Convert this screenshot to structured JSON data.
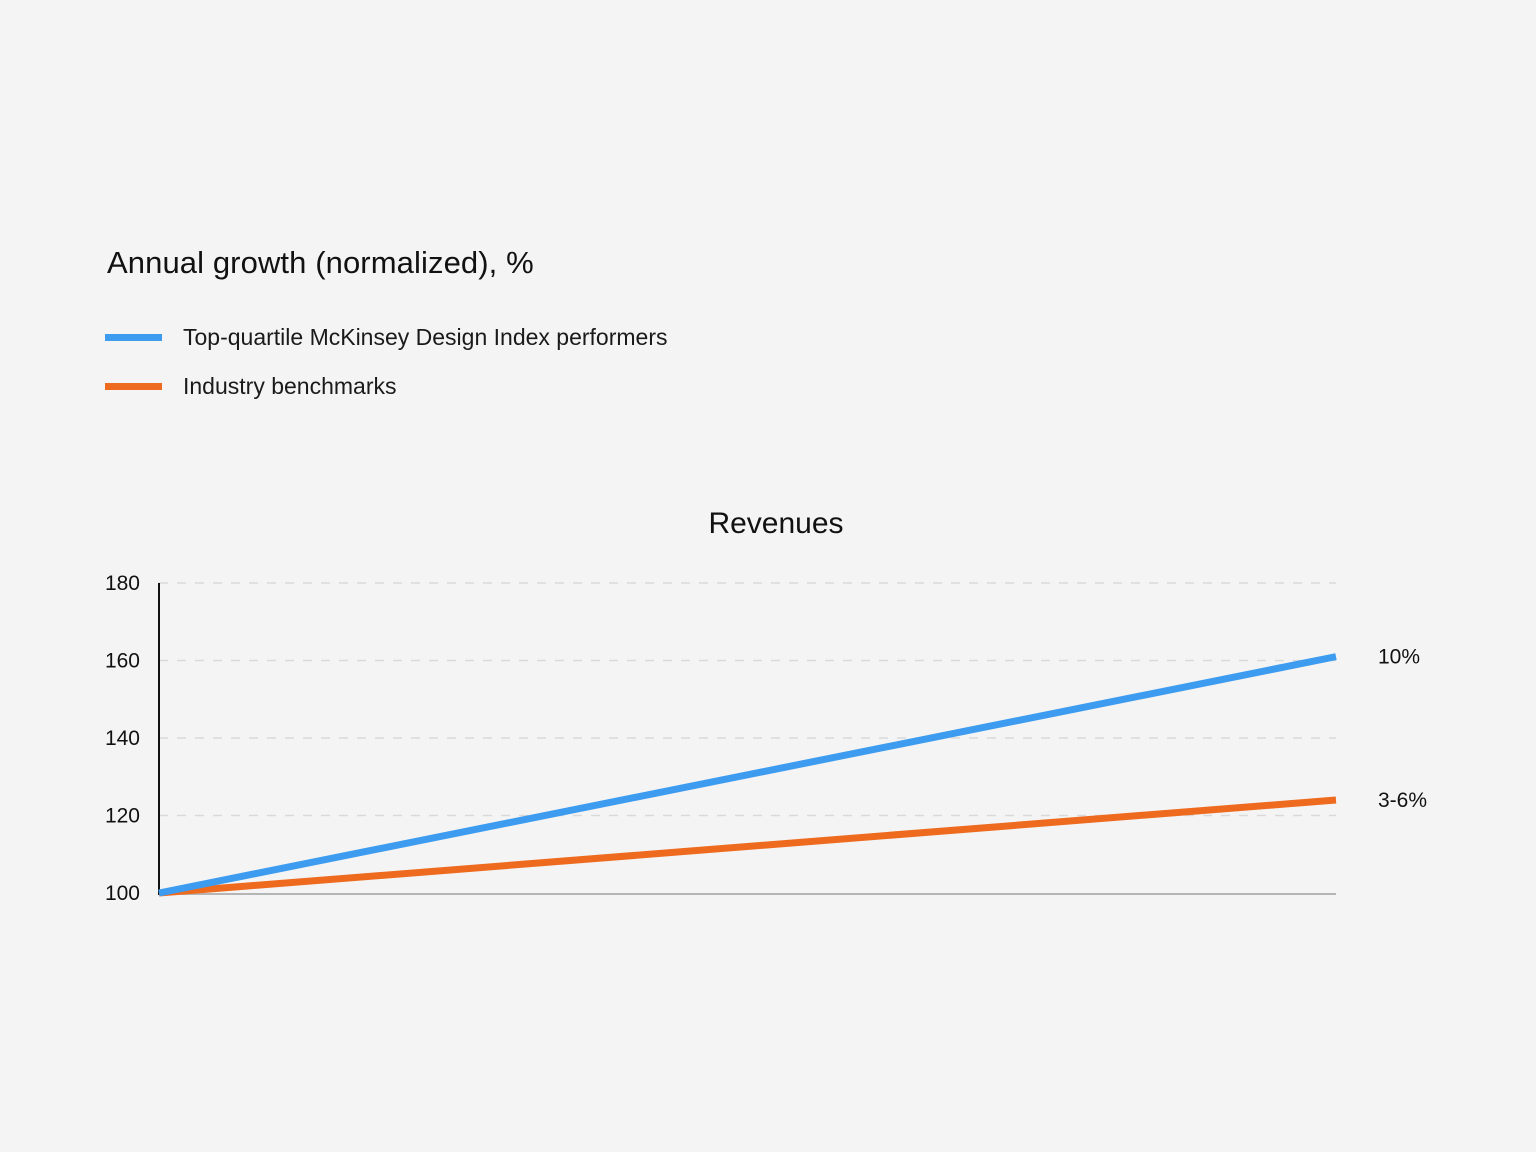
{
  "heading": "Annual growth (normalized), %",
  "legend": [
    {
      "label": "Top-quartile McKinsey Design Index performers",
      "color": "#3d9cf0"
    },
    {
      "label": "Industry benchmarks",
      "color": "#ee6a1f"
    }
  ],
  "chart_data": {
    "type": "line",
    "title": "Revenues",
    "xlabel": "",
    "ylabel": "",
    "ylim": [
      100,
      180
    ],
    "yticks": [
      100,
      120,
      140,
      160,
      180
    ],
    "grid": true,
    "legend_position": "top-left",
    "x": [
      0,
      1
    ],
    "series": [
      {
        "name": "Top-quartile McKinsey Design Index performers",
        "values": [
          100,
          161
        ],
        "color": "#3d9cf0",
        "end_label": "10%"
      },
      {
        "name": "Industry benchmarks",
        "values": [
          100,
          124
        ],
        "color": "#ee6a1f",
        "end_label": "3-6%"
      }
    ]
  }
}
